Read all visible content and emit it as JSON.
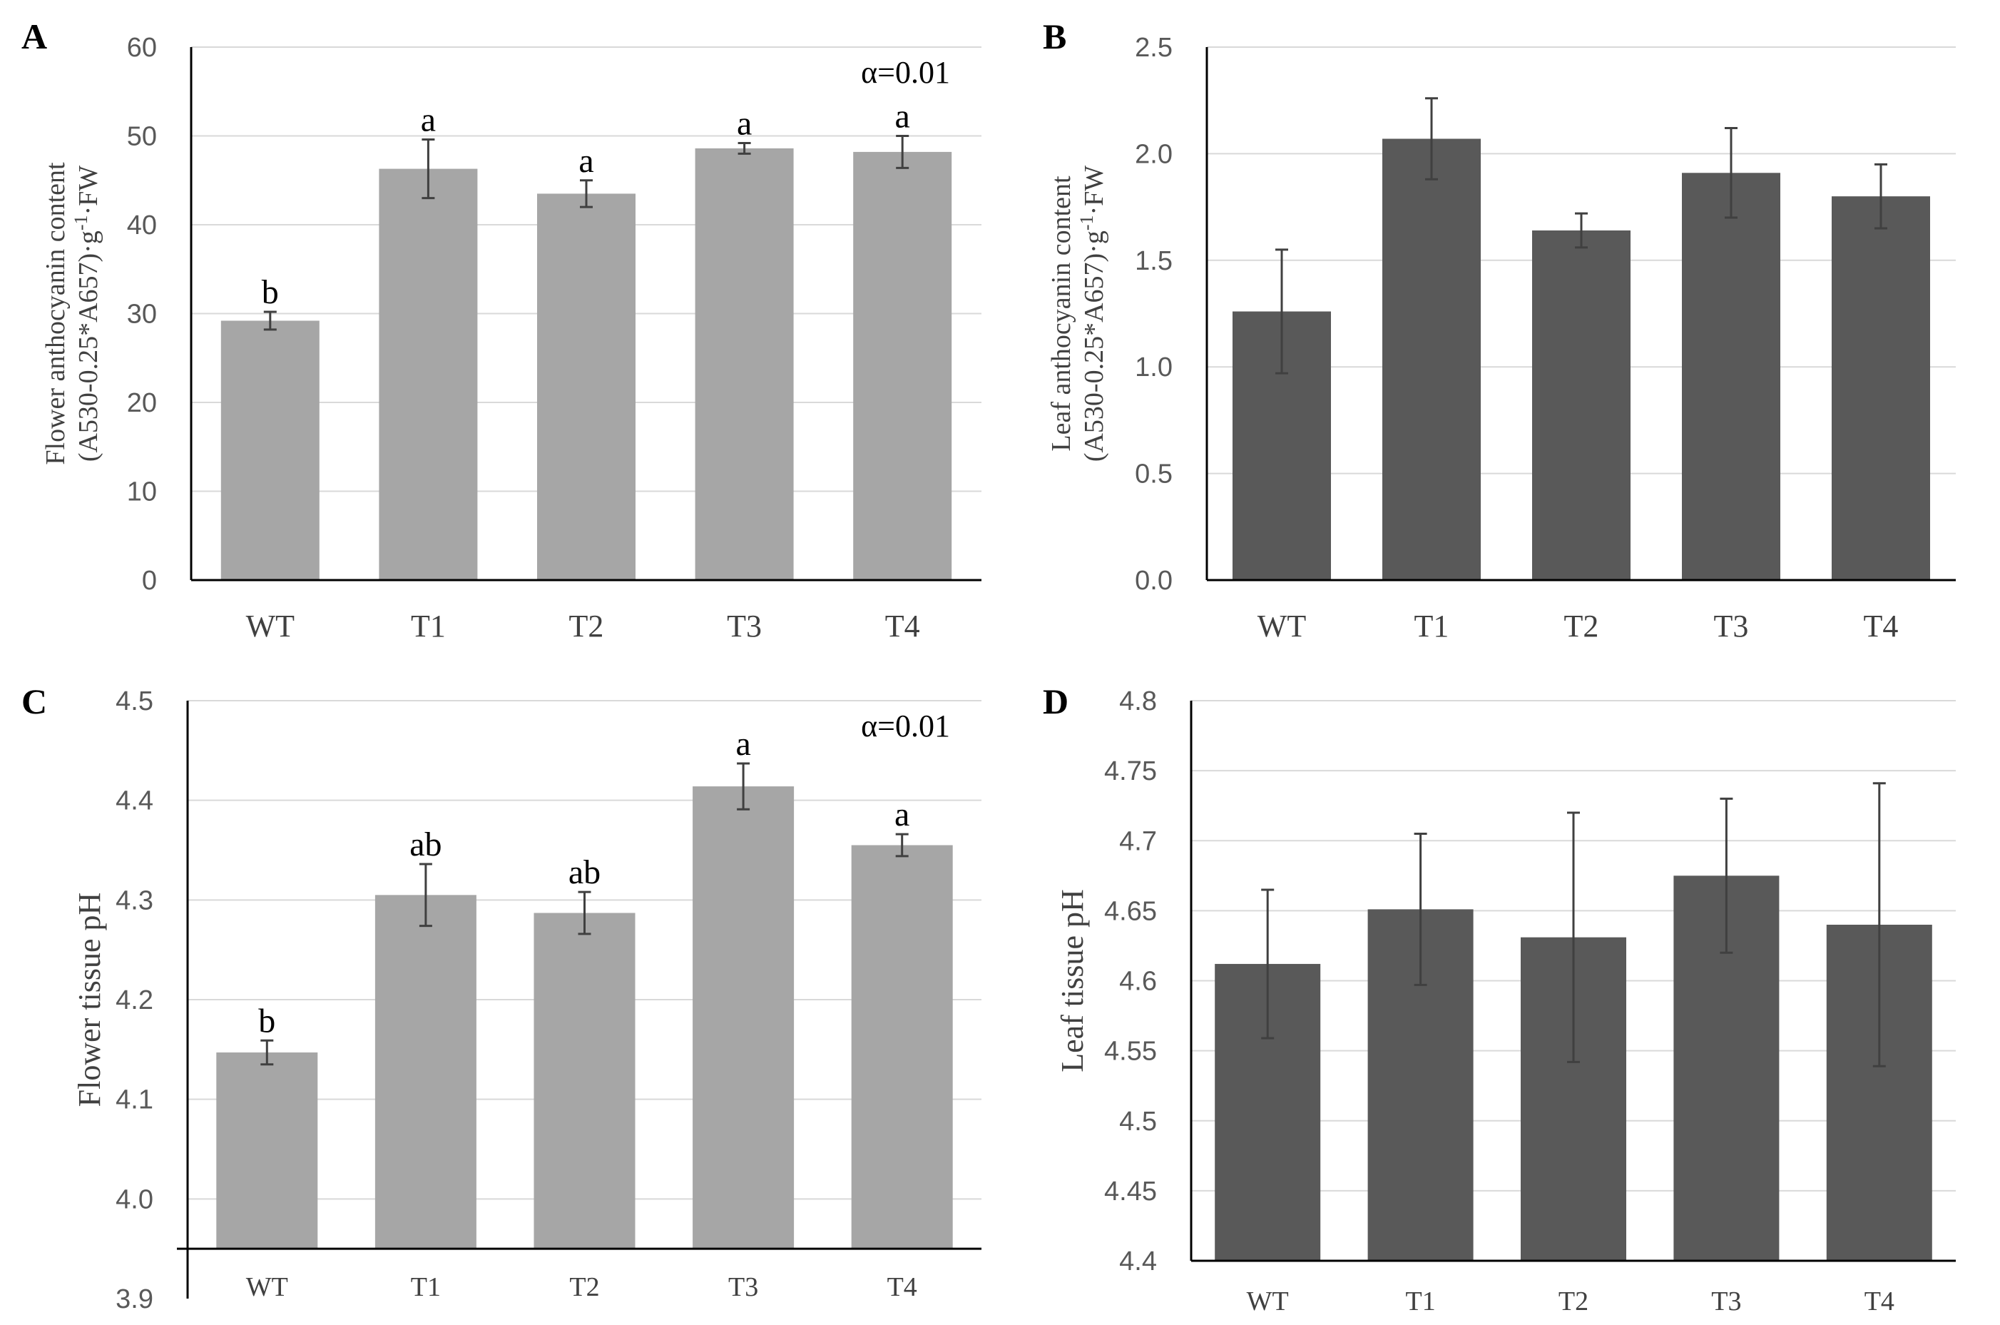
{
  "chart_data": [
    {
      "type": "bar",
      "panel": "A",
      "categories": [
        "WT",
        "T1",
        "T2",
        "T3",
        "T4"
      ],
      "values": [
        29.2,
        46.3,
        43.5,
        48.6,
        48.2
      ],
      "errors": [
        1.0,
        3.3,
        1.5,
        0.6,
        1.8
      ],
      "significance": [
        "b",
        "a",
        "a",
        "a",
        "a"
      ],
      "annotation": "α=0.01",
      "ylabel_line1": "Flower anthocyanin content",
      "ylabel_line2": "(A530-0.25*A657)·g",
      "ylabel_sup": "-1",
      "ylabel_line2_tail": "·FW",
      "ylim": [
        0,
        60
      ],
      "yticks": [
        "0",
        "10",
        "20",
        "30",
        "40",
        "50",
        "60"
      ],
      "bar_color": "#a6a6a6"
    },
    {
      "type": "bar",
      "panel": "B",
      "categories": [
        "WT",
        "T1",
        "T2",
        "T3",
        "T4"
      ],
      "values": [
        1.26,
        2.07,
        1.64,
        1.91,
        1.8
      ],
      "errors": [
        0.29,
        0.19,
        0.08,
        0.21,
        0.15
      ],
      "ylabel_line1": "Leaf anthocyanin content",
      "ylabel_line2": "(A530-0.25*A657)·g",
      "ylabel_sup": "-1",
      "ylabel_line2_tail": "·FW",
      "ylim": [
        0,
        2.5
      ],
      "yticks": [
        "0.0",
        "0.5",
        "1.0",
        "1.5",
        "2.0",
        "2.5"
      ],
      "bar_color": "#595959"
    },
    {
      "type": "bar",
      "panel": "C",
      "categories": [
        "WT",
        "T1",
        "T2",
        "T3",
        "T4"
      ],
      "values": [
        4.147,
        4.305,
        4.287,
        4.414,
        4.355
      ],
      "errors": [
        0.012,
        0.031,
        0.021,
        0.023,
        0.011
      ],
      "significance": [
        "b",
        "ab",
        "ab",
        "a",
        "a"
      ],
      "annotation": "α=0.01",
      "ylabel": "Flower tissue pH",
      "ylim": [
        3.9,
        4.5
      ],
      "baseline": 3.95,
      "yticks": [
        "3.9",
        "4.0",
        "4.1",
        "4.2",
        "4.3",
        "4.4",
        "4.5"
      ],
      "bar_color": "#a6a6a6"
    },
    {
      "type": "bar",
      "panel": "D",
      "categories": [
        "WT",
        "T1",
        "T2",
        "T3",
        "T4"
      ],
      "values": [
        4.612,
        4.651,
        4.631,
        4.675,
        4.64
      ],
      "errors": [
        0.053,
        0.054,
        0.089,
        0.055,
        0.101
      ],
      "ylabel": "Leaf tissue pH",
      "ylim": [
        4.4,
        4.8
      ],
      "yticks": [
        "4.4",
        "4.45",
        "4.5",
        "4.55",
        "4.6",
        "4.65",
        "4.7",
        "4.75",
        "4.8"
      ],
      "bar_color": "#595959"
    }
  ]
}
